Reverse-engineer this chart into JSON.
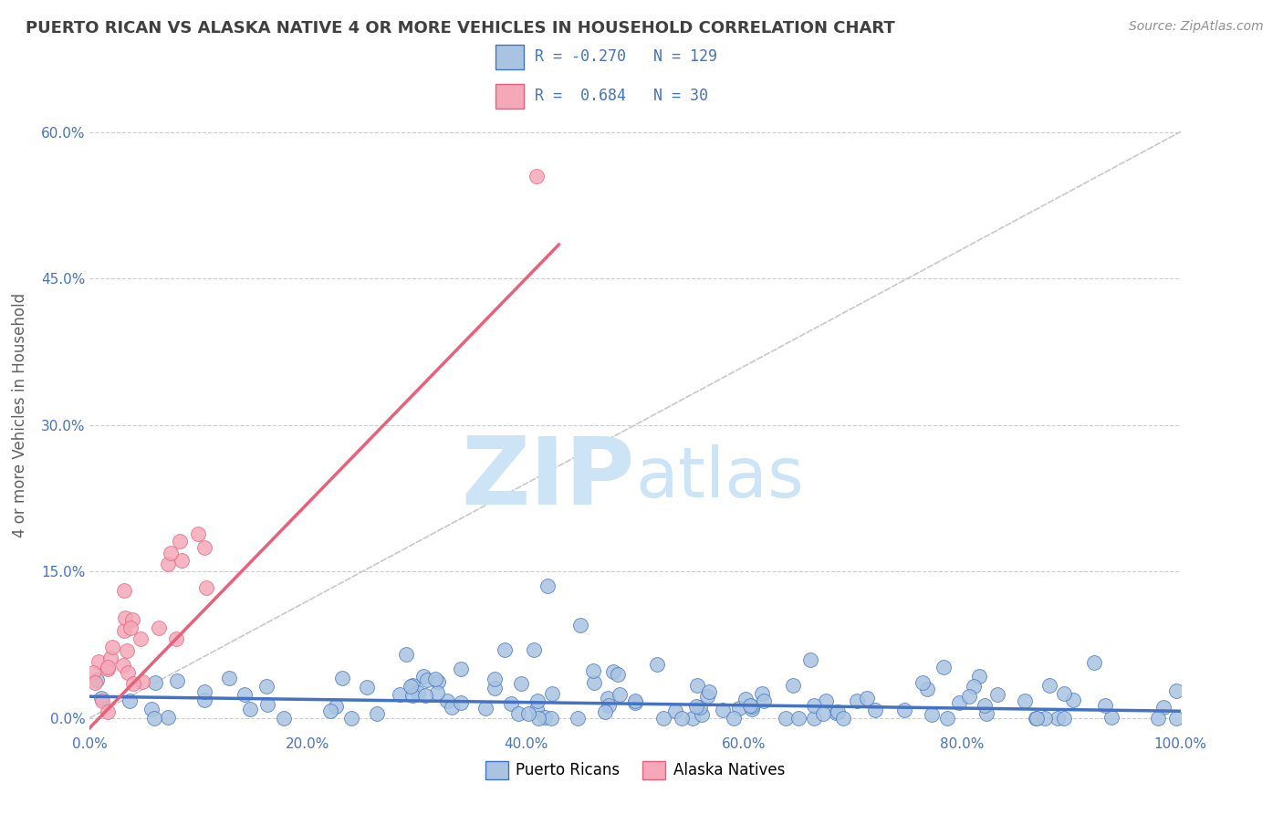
{
  "title": "PUERTO RICAN VS ALASKA NATIVE 4 OR MORE VEHICLES IN HOUSEHOLD CORRELATION CHART",
  "source": "Source: ZipAtlas.com",
  "ylabel": "4 or more Vehicles in Household",
  "xlabel": "",
  "xlim": [
    0.0,
    1.0
  ],
  "ylim": [
    -0.015,
    0.635
  ],
  "xticks": [
    0.0,
    0.2,
    0.4,
    0.6,
    0.8,
    1.0
  ],
  "xtick_labels": [
    "0.0%",
    "20.0%",
    "40.0%",
    "60.0%",
    "80.0%",
    "100.0%"
  ],
  "yticks": [
    0.0,
    0.15,
    0.3,
    0.45,
    0.6
  ],
  "ytick_labels": [
    "0.0%",
    "15.0%",
    "30.0%",
    "45.0%",
    "60.0%"
  ],
  "legend_labels": [
    "Puerto Ricans",
    "Alaska Natives"
  ],
  "r_blue": -0.27,
  "n_blue": 129,
  "r_pink": 0.684,
  "n_pink": 30,
  "scatter_blue_color": "#a8c4e0",
  "scatter_pink_color": "#f4a8b8",
  "line_blue_color": "#4472c4",
  "line_pink_color": "#e8607a",
  "diagonal_color": "#c8c8c8",
  "watermark_color": "#cce4f5",
  "background_color": "#ffffff",
  "grid_color": "#cccccc",
  "title_color": "#404040",
  "axis_color": "#4472c4",
  "seed": 42
}
